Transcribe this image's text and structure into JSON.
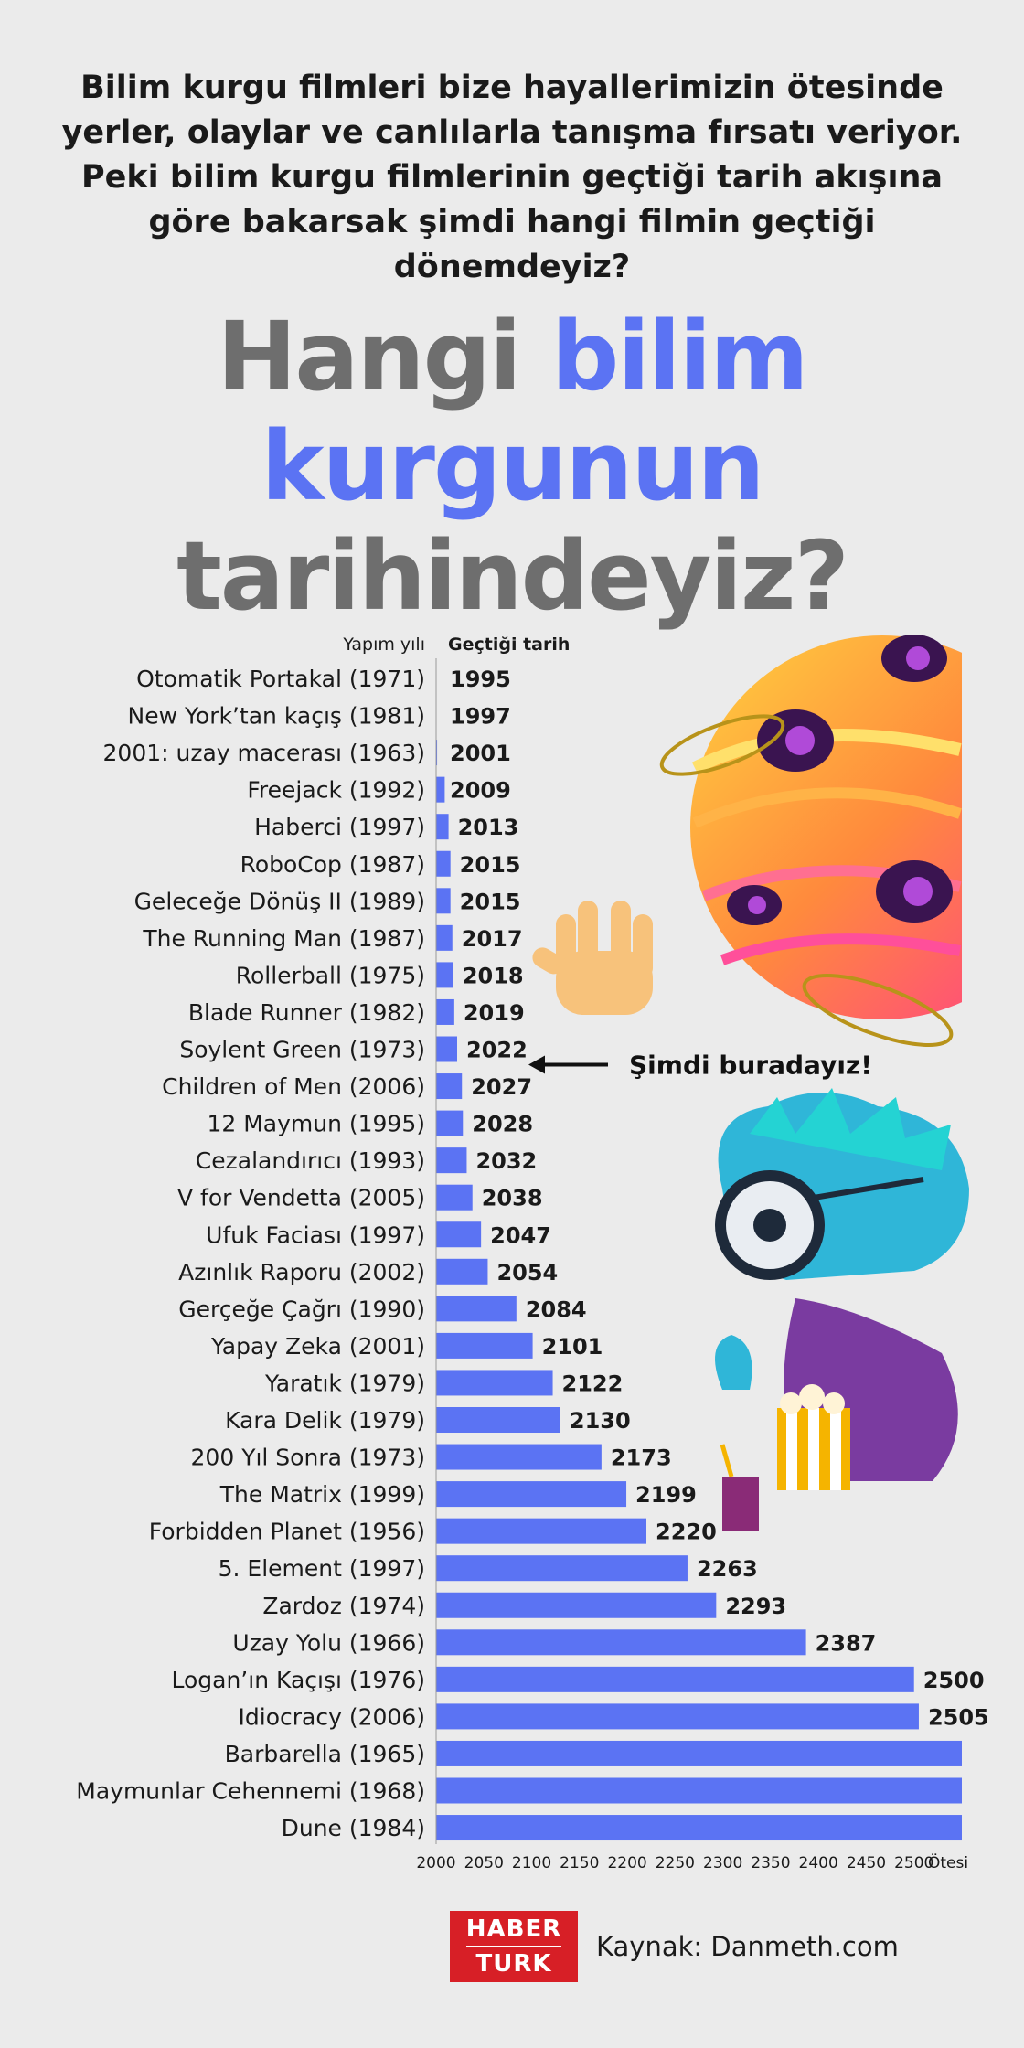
{
  "intro_text": "Bilim kurgu filmleri bize hayallerimizin ötesinde yerler, olaylar ve canlılarla tanışma fırsatı veriyor. Peki bilim kurgu filmlerinin geçtiği tarih akışına göre bakarsak şimdi hangi filmin geçtiği dönemdeyiz?",
  "headline": {
    "part1": "Hangi ",
    "part2": "bilim",
    "part3": "kurgunun",
    "part4": "tarihindeyiz?"
  },
  "colors": {
    "bar": "#5b73f3",
    "accent": "#5b73f3",
    "gray": "#6e6e6e",
    "logo": "#d71f26"
  },
  "chart_data": {
    "type": "bar",
    "orientation": "horizontal",
    "column_headers": {
      "left": "Yapım yılı",
      "right": "Geçtiği tarih"
    },
    "categories": [
      "Otomatik Portakal (1971)",
      "New York’tan kaçış (1981)",
      "2001: uzay macerası (1963)",
      "Freejack (1992)",
      "Haberci (1997)",
      "RoboCop (1987)",
      "Geleceğe Dönüş II (1989)",
      "The Running Man (1987)",
      "Rollerball (1975)",
      "Blade Runner (1982)",
      "Soylent Green (1973)",
      "Children of Men (2006)",
      "12 Maymun (1995)",
      "Cezalandırıcı (1993)",
      "V for Vendetta (2005)",
      "Ufuk Faciası (1997)",
      "Azınlık Raporu (2002)",
      "Gerçeğe Çağrı (1990)",
      "Yapay Zeka (2001)",
      "Yaratık (1979)",
      "Kara Delik (1979)",
      "200 Yıl Sonra (1973)",
      "The Matrix (1999)",
      "Forbidden Planet (1956)",
      "5. Element (1997)",
      "Zardoz (1974)",
      "Uzay Yolu (1966)",
      "Logan’ın Kaçışı (1976)",
      "Idiocracy (2006)",
      "Barbarella (1965)",
      "Maymunlar Cehennemi (1968)",
      "Dune (1984)"
    ],
    "values": [
      1995,
      1997,
      2001,
      2009,
      2013,
      2015,
      2015,
      2017,
      2018,
      2019,
      2022,
      2027,
      2028,
      2032,
      2038,
      2047,
      2054,
      2084,
      2101,
      2122,
      2130,
      2173,
      2199,
      2220,
      2263,
      2293,
      2387,
      2500,
      2505,
      null,
      null,
      null
    ],
    "value_labels": [
      "1995",
      "1997",
      "2001",
      "2009",
      "2013",
      "2015",
      "2015",
      "2017",
      "2018",
      "2019",
      "2022",
      "2027",
      "2028",
      "2032",
      "2038",
      "2047",
      "2054",
      "2084",
      "2101",
      "2122",
      "2130",
      "2173",
      "2199",
      "2220",
      "2263",
      "2293",
      "2387",
      "2500",
      "2505",
      "",
      "",
      ""
    ],
    "beyond_label": "Ötesi",
    "xlim": [
      2000,
      2550
    ],
    "x_ticks": [
      "2000",
      "2050",
      "2100",
      "2150",
      "2200",
      "2250",
      "2300",
      "2350",
      "2400",
      "2450",
      "2500",
      "Ötesi"
    ],
    "annotation": {
      "text": "Şimdi buradayız!",
      "category_index": 10
    }
  },
  "source": {
    "logo_line1": "HABER",
    "logo_line2": "TURK",
    "text": "Kaynak: Danmeth.com"
  }
}
